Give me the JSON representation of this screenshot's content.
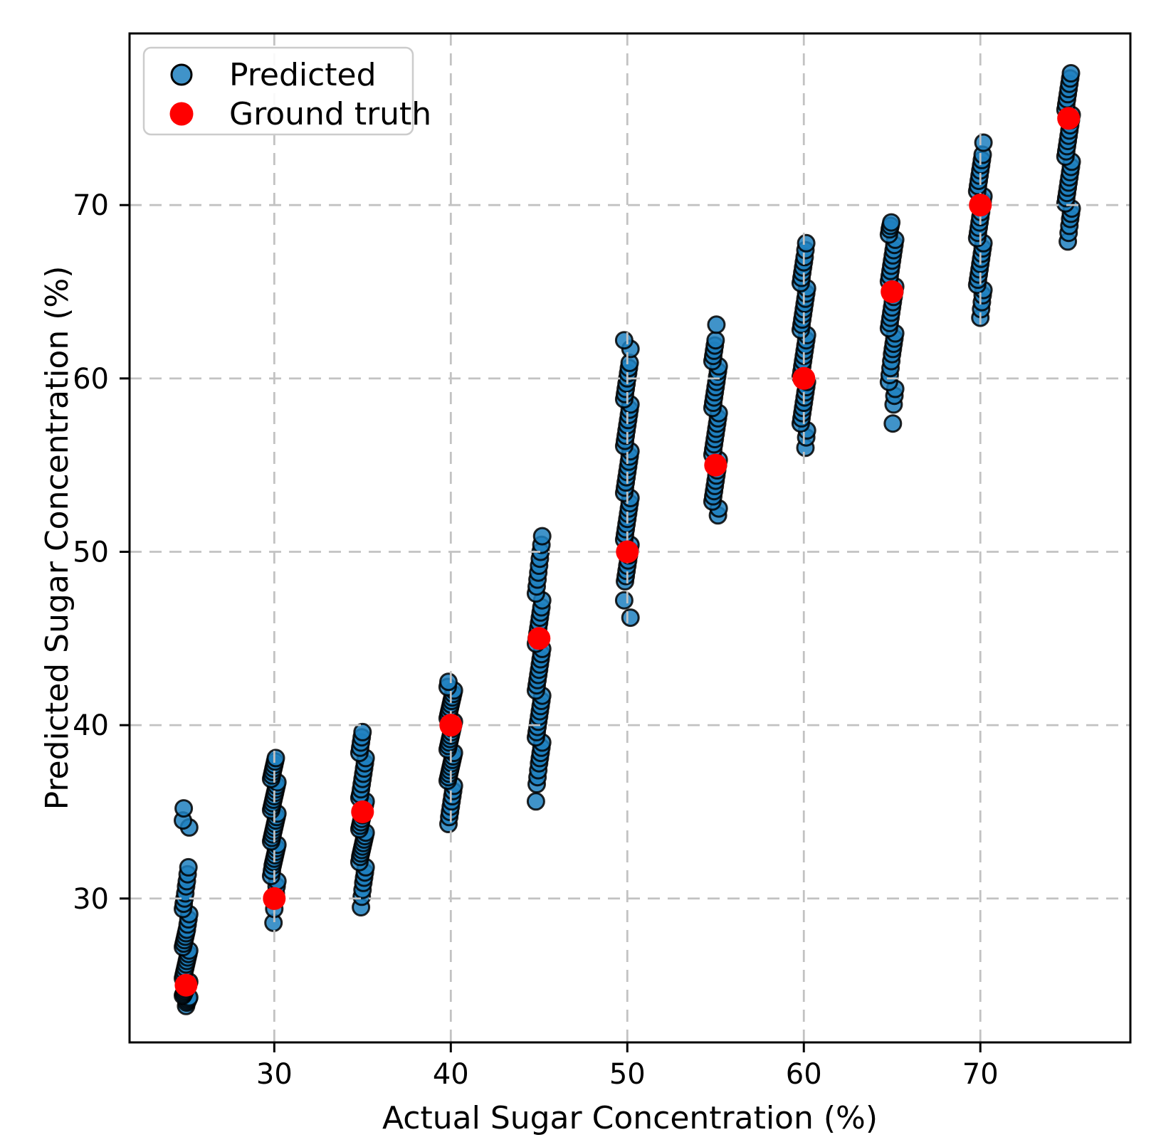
{
  "figure": {
    "background": "#ffffff"
  },
  "chart_data": {
    "type": "scatter",
    "title": "",
    "xlabel": "Actual Sugar Concentration (%)",
    "ylabel": "Predicted Sugar Concentration (%)",
    "xlim": [
      21.8,
      78.5
    ],
    "ylim": [
      21.7,
      79.9
    ],
    "xticks": [
      30,
      40,
      50,
      60,
      70
    ],
    "yticks": [
      30,
      40,
      50,
      60,
      70
    ],
    "grid": true,
    "grid_color": "#c2c2c2",
    "axis_color": "#000000",
    "legend": {
      "position": "upper-left"
    },
    "series": [
      {
        "name": "Predicted",
        "marker": "circle",
        "color": "#1f80c0",
        "edge_color": "#000000",
        "opacity": 0.85,
        "clusters": [
          {
            "x": 25,
            "y": [
              23.8,
              24.0,
              24.1,
              24.2,
              24.3,
              24.4,
              24.5,
              24.6,
              24.7,
              24.8,
              24.9,
              25.0,
              25.1,
              25.2,
              25.4,
              25.6,
              25.8,
              26.0,
              26.2,
              26.4,
              26.6,
              26.8,
              27.0,
              27.2,
              27.4,
              27.6,
              27.8,
              28.0,
              28.2,
              28.5,
              28.8,
              29.1,
              29.4,
              29.7,
              30.0,
              30.3,
              30.7,
              31.0,
              31.4,
              31.8,
              34.1,
              34.5,
              35.2
            ]
          },
          {
            "x": 30,
            "y": [
              28.6,
              29.4,
              29.9,
              30.3,
              30.7,
              31.0,
              31.3,
              31.6,
              31.9,
              32.1,
              32.3,
              32.5,
              32.7,
              32.9,
              33.1,
              33.3,
              33.5,
              33.7,
              33.9,
              34.1,
              34.3,
              34.5,
              34.7,
              34.9,
              35.1,
              35.3,
              35.5,
              35.7,
              35.9,
              36.1,
              36.3,
              36.5,
              36.7,
              36.9,
              37.1,
              37.3,
              37.5,
              37.7,
              37.9,
              38.1
            ]
          },
          {
            "x": 35,
            "y": [
              29.5,
              30.1,
              30.5,
              30.9,
              31.2,
              31.5,
              31.8,
              32.1,
              32.4,
              32.6,
              32.8,
              33.0,
              33.2,
              33.4,
              33.6,
              33.8,
              34.0,
              34.2,
              34.4,
              34.6,
              34.8,
              35.0,
              35.2,
              35.4,
              35.6,
              35.8,
              36.0,
              36.3,
              36.6,
              36.9,
              37.2,
              37.5,
              37.8,
              38.1,
              38.4,
              38.7,
              39.0,
              39.3,
              39.6
            ]
          },
          {
            "x": 40,
            "y": [
              34.3,
              34.7,
              35.0,
              35.3,
              35.6,
              35.9,
              36.2,
              36.5,
              36.8,
              37.0,
              37.2,
              37.4,
              37.6,
              37.8,
              38.0,
              38.2,
              38.4,
              38.6,
              38.8,
              39.0,
              39.2,
              39.4,
              39.6,
              39.8,
              40.0,
              40.2,
              40.4,
              40.6,
              40.8,
              41.0,
              41.2,
              41.4,
              41.6,
              41.8,
              42.0,
              42.2,
              42.5
            ]
          },
          {
            "x": 45,
            "y": [
              35.6,
              36.6,
              37.0,
              37.4,
              37.8,
              38.1,
              38.4,
              38.7,
              39.0,
              39.3,
              39.6,
              39.9,
              40.2,
              40.5,
              40.8,
              41.1,
              41.4,
              41.7,
              42.0,
              42.3,
              42.6,
              42.9,
              43.2,
              43.5,
              43.8,
              44.1,
              44.4,
              44.7,
              45.0,
              45.3,
              45.6,
              45.9,
              46.2,
              46.5,
              46.8,
              47.2,
              47.6,
              48.0,
              48.4,
              48.8,
              49.2,
              49.6,
              50.0,
              50.4,
              50.9
            ]
          },
          {
            "x": 50,
            "y": [
              46.2,
              47.2,
              48.3,
              48.6,
              48.9,
              49.2,
              49.5,
              49.8,
              50.1,
              50.4,
              50.7,
              51.0,
              51.3,
              51.6,
              51.9,
              52.2,
              52.5,
              52.8,
              53.1,
              53.4,
              53.7,
              54.0,
              54.3,
              54.6,
              54.9,
              55.2,
              55.5,
              55.8,
              56.1,
              56.4,
              56.7,
              57.0,
              57.3,
              57.6,
              57.9,
              58.2,
              58.5,
              58.8,
              59.1,
              59.4,
              59.7,
              60.0,
              60.3,
              60.6,
              60.9,
              61.7,
              62.2
            ]
          },
          {
            "x": 55,
            "y": [
              52.1,
              52.5,
              52.9,
              53.2,
              53.5,
              53.8,
              54.1,
              54.4,
              54.7,
              55.0,
              55.3,
              55.6,
              55.9,
              56.2,
              56.5,
              56.8,
              57.1,
              57.4,
              57.7,
              58.0,
              58.3,
              58.6,
              58.9,
              59.2,
              59.5,
              59.8,
              60.1,
              60.4,
              60.7,
              61.0,
              61.3,
              61.6,
              61.9,
              62.2,
              63.1
            ]
          },
          {
            "x": 60,
            "y": [
              56.0,
              56.6,
              57.0,
              57.4,
              57.7,
              58.0,
              58.3,
              58.6,
              58.9,
              59.2,
              59.5,
              59.8,
              60.1,
              60.4,
              60.7,
              61.0,
              61.3,
              61.6,
              61.9,
              62.2,
              62.5,
              62.8,
              63.1,
              63.4,
              63.7,
              64.0,
              64.3,
              64.6,
              64.9,
              65.2,
              65.5,
              65.8,
              66.1,
              66.4,
              66.7,
              67.0,
              67.4,
              67.8
            ]
          },
          {
            "x": 65,
            "y": [
              57.4,
              58.5,
              59.0,
              59.4,
              59.8,
              60.2,
              60.6,
              61.0,
              61.4,
              61.7,
              62.0,
              62.3,
              62.6,
              62.9,
              63.2,
              63.5,
              63.8,
              64.1,
              64.4,
              64.7,
              65.0,
              65.3,
              65.6,
              65.9,
              66.2,
              66.5,
              66.8,
              67.1,
              67.4,
              67.7,
              68.0,
              68.3,
              68.6,
              68.8,
              69.0
            ]
          },
          {
            "x": 70,
            "y": [
              63.5,
              64.0,
              64.4,
              64.8,
              65.1,
              65.4,
              65.7,
              66.0,
              66.3,
              66.6,
              66.9,
              67.2,
              67.5,
              67.8,
              68.1,
              68.4,
              68.7,
              69.0,
              69.3,
              69.6,
              69.9,
              70.2,
              70.5,
              70.8,
              71.1,
              71.4,
              71.7,
              72.0,
              72.3,
              72.6,
              72.9,
              73.6
            ]
          },
          {
            "x": 75,
            "y": [
              67.9,
              68.4,
              68.8,
              69.2,
              69.5,
              69.8,
              70.1,
              70.4,
              70.7,
              71.0,
              71.3,
              71.6,
              71.9,
              72.2,
              72.5,
              72.8,
              73.1,
              73.4,
              73.7,
              74.0,
              74.3,
              74.6,
              74.9,
              75.2,
              75.5,
              75.8,
              76.1,
              76.4,
              76.7,
              77.0,
              77.3,
              77.6
            ]
          }
        ]
      },
      {
        "name": "Ground truth",
        "marker": "circle",
        "color": "#ff0000",
        "points": [
          [
            25,
            25
          ],
          [
            30,
            30
          ],
          [
            35,
            35
          ],
          [
            40,
            40
          ],
          [
            45,
            45
          ],
          [
            50,
            50
          ],
          [
            55,
            55
          ],
          [
            60,
            60
          ],
          [
            65,
            65
          ],
          [
            70,
            70
          ],
          [
            75,
            75
          ]
        ]
      }
    ]
  }
}
